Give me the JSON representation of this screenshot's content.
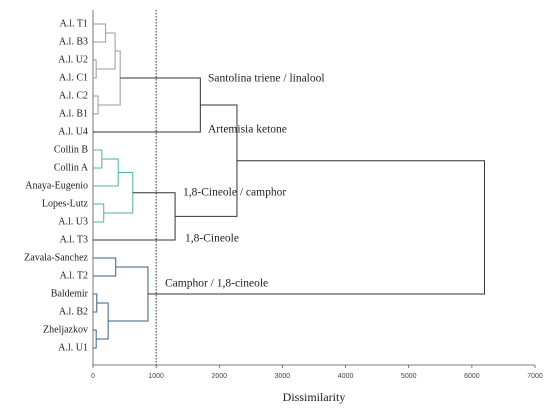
{
  "chart_data": {
    "type": "dendrogram",
    "leaves": [
      "A.l. T1",
      "A.l. B3",
      "A.l. U2",
      "A.l. C1",
      "A.l. C2",
      "A.l. B1",
      "A.l. U4",
      "Collin B",
      "Collin A",
      "Anaya-Eugenio",
      "Lopes-Lutz",
      "A.l. U3",
      "A.l. T3",
      "Zavala-Sanchez",
      "A.l. T2",
      "Baldemir",
      "A.l. B2",
      "Zheljazkov",
      "A.l. U1"
    ],
    "merges": [
      {
        "left": 0,
        "right": 1,
        "height": 200,
        "color": "#9a9a9a"
      },
      {
        "left": 2,
        "right": 3,
        "height": 50,
        "color": "#9a9a9a"
      },
      {
        "left": 19,
        "right": 20,
        "height": 350,
        "color": "#9a9a9a"
      },
      {
        "left": 4,
        "right": 5,
        "height": 80,
        "color": "#9a9a9a"
      },
      {
        "left": 21,
        "right": 22,
        "height": 430,
        "color": "#9a9a9a"
      },
      {
        "left": 23,
        "right": 6,
        "height": 1700,
        "color": "#333333"
      },
      {
        "left": 7,
        "right": 8,
        "height": 140,
        "color": "#4fb3a0"
      },
      {
        "left": 25,
        "right": 9,
        "height": 400,
        "color": "#4fb3a0"
      },
      {
        "left": 10,
        "right": 11,
        "height": 170,
        "color": "#4fb3a0"
      },
      {
        "left": 26,
        "right": 27,
        "height": 630,
        "color": "#4fb3a0"
      },
      {
        "left": 28,
        "right": 12,
        "height": 1300,
        "color": "#333333"
      },
      {
        "left": 24,
        "right": 29,
        "height": 2280,
        "color": "#333333"
      },
      {
        "left": 13,
        "right": 14,
        "height": 360,
        "color": "#3a5f8a"
      },
      {
        "left": 15,
        "right": 16,
        "height": 60,
        "color": "#3a5f8a"
      },
      {
        "left": 17,
        "right": 18,
        "height": 50,
        "color": "#3a5f8a"
      },
      {
        "left": 32,
        "right": 33,
        "height": 240,
        "color": "#3a5f8a"
      },
      {
        "left": 31,
        "right": 34,
        "height": 870,
        "color": "#3a5f8a"
      },
      {
        "left": 30,
        "right": 35,
        "height": 6200,
        "color": "#333333"
      }
    ],
    "annotations": [
      "Santolina triene / linalool",
      "Artemisia ketone",
      "1,8-Cineole / camphor",
      "1,8-Cineole",
      "Camphor / 1,8-cineole"
    ],
    "ref_line": 1000,
    "xlabel": "Dissimilarity",
    "xlim": [
      0,
      7000
    ],
    "xticks": [
      0,
      1000,
      2000,
      3000,
      4000,
      5000,
      6000,
      7000
    ]
  }
}
